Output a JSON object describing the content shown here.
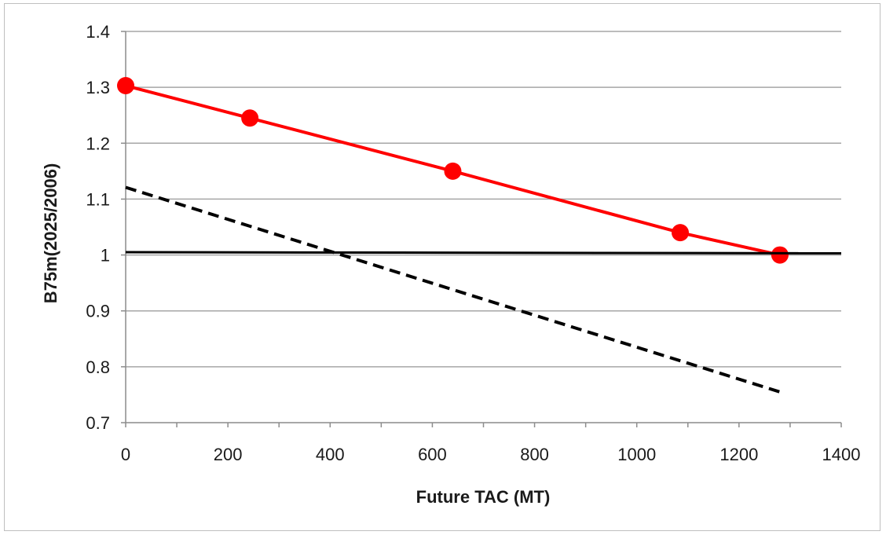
{
  "chart_data": {
    "type": "line",
    "title": "",
    "xlabel": "Future TAC (MT)",
    "ylabel": "B75m(2025/2006)",
    "xlim": [
      0,
      1400
    ],
    "ylim": [
      0.7,
      1.4
    ],
    "x_ticks": [
      0,
      200,
      400,
      600,
      800,
      1000,
      1200,
      1400
    ],
    "x_tick_labels": [
      "0",
      "200",
      "400",
      "600",
      "800",
      "1000",
      "1200",
      "1400"
    ],
    "y_ticks": [
      0.7,
      0.8,
      0.9,
      1.0,
      1.1,
      1.2,
      1.3,
      1.4
    ],
    "y_tick_labels": [
      "0.7",
      "0.8",
      "0.9",
      "1",
      "1.1",
      "1.2",
      "1.3",
      "1.4"
    ],
    "grid": "horizontal",
    "legend": "none",
    "series": [
      {
        "style": "solid-with-markers",
        "color": "#ff0000",
        "x": [
          0,
          243,
          640,
          1085,
          1280
        ],
        "y": [
          1.303,
          1.245,
          1.15,
          1.04,
          1.0
        ]
      },
      {
        "style": "dashed",
        "color": "#000000",
        "x": [
          0,
          1280
        ],
        "y": [
          1.121,
          0.755
        ]
      },
      {
        "style": "solid",
        "color": "#000000",
        "x": [
          0,
          1400
        ],
        "y": [
          1.005,
          1.003
        ]
      }
    ]
  }
}
